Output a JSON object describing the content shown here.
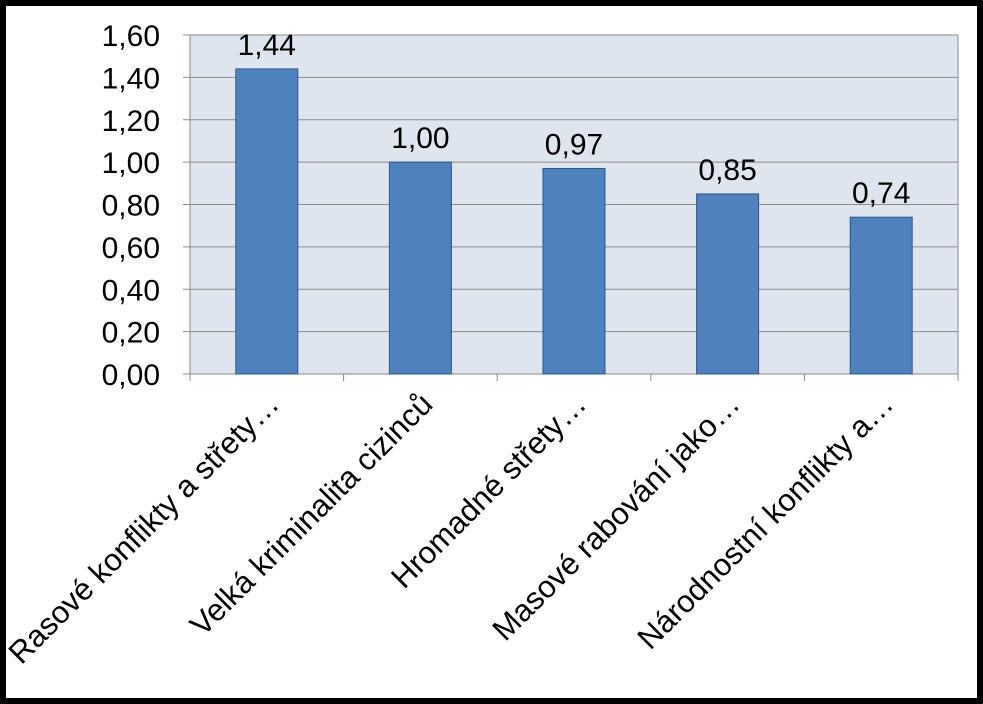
{
  "chart_data": {
    "type": "bar",
    "title": "",
    "xlabel": "",
    "ylabel": "",
    "categories": [
      "Rasové konflikty a střety…",
      "Velká kriminalita cizinců",
      "Hromadné střety…",
      "Masové rabování jako…",
      "Národnostní konflikty a…"
    ],
    "values": [
      1.44,
      1.0,
      0.97,
      0.85,
      0.74
    ],
    "value_labels": [
      "1,44",
      "1,00",
      "0,97",
      "0,85",
      "0,74"
    ],
    "ylim": [
      0,
      1.6
    ],
    "yticks": [
      0,
      0.2,
      0.4,
      0.6,
      0.8,
      1.0,
      1.2,
      1.4,
      1.6
    ],
    "ytick_labels": [
      "0,00",
      "0,20",
      "0,40",
      "0,60",
      "0,80",
      "1,00",
      "1,20",
      "1,40",
      "1,60"
    ],
    "grid": true,
    "legend": "none",
    "colors": {
      "bar": "#4f81bd",
      "bar_edge": "#2c5788",
      "plot_bg": "#dfe5ef",
      "gridline": "#8a8a8a",
      "frame": "#000000"
    }
  }
}
